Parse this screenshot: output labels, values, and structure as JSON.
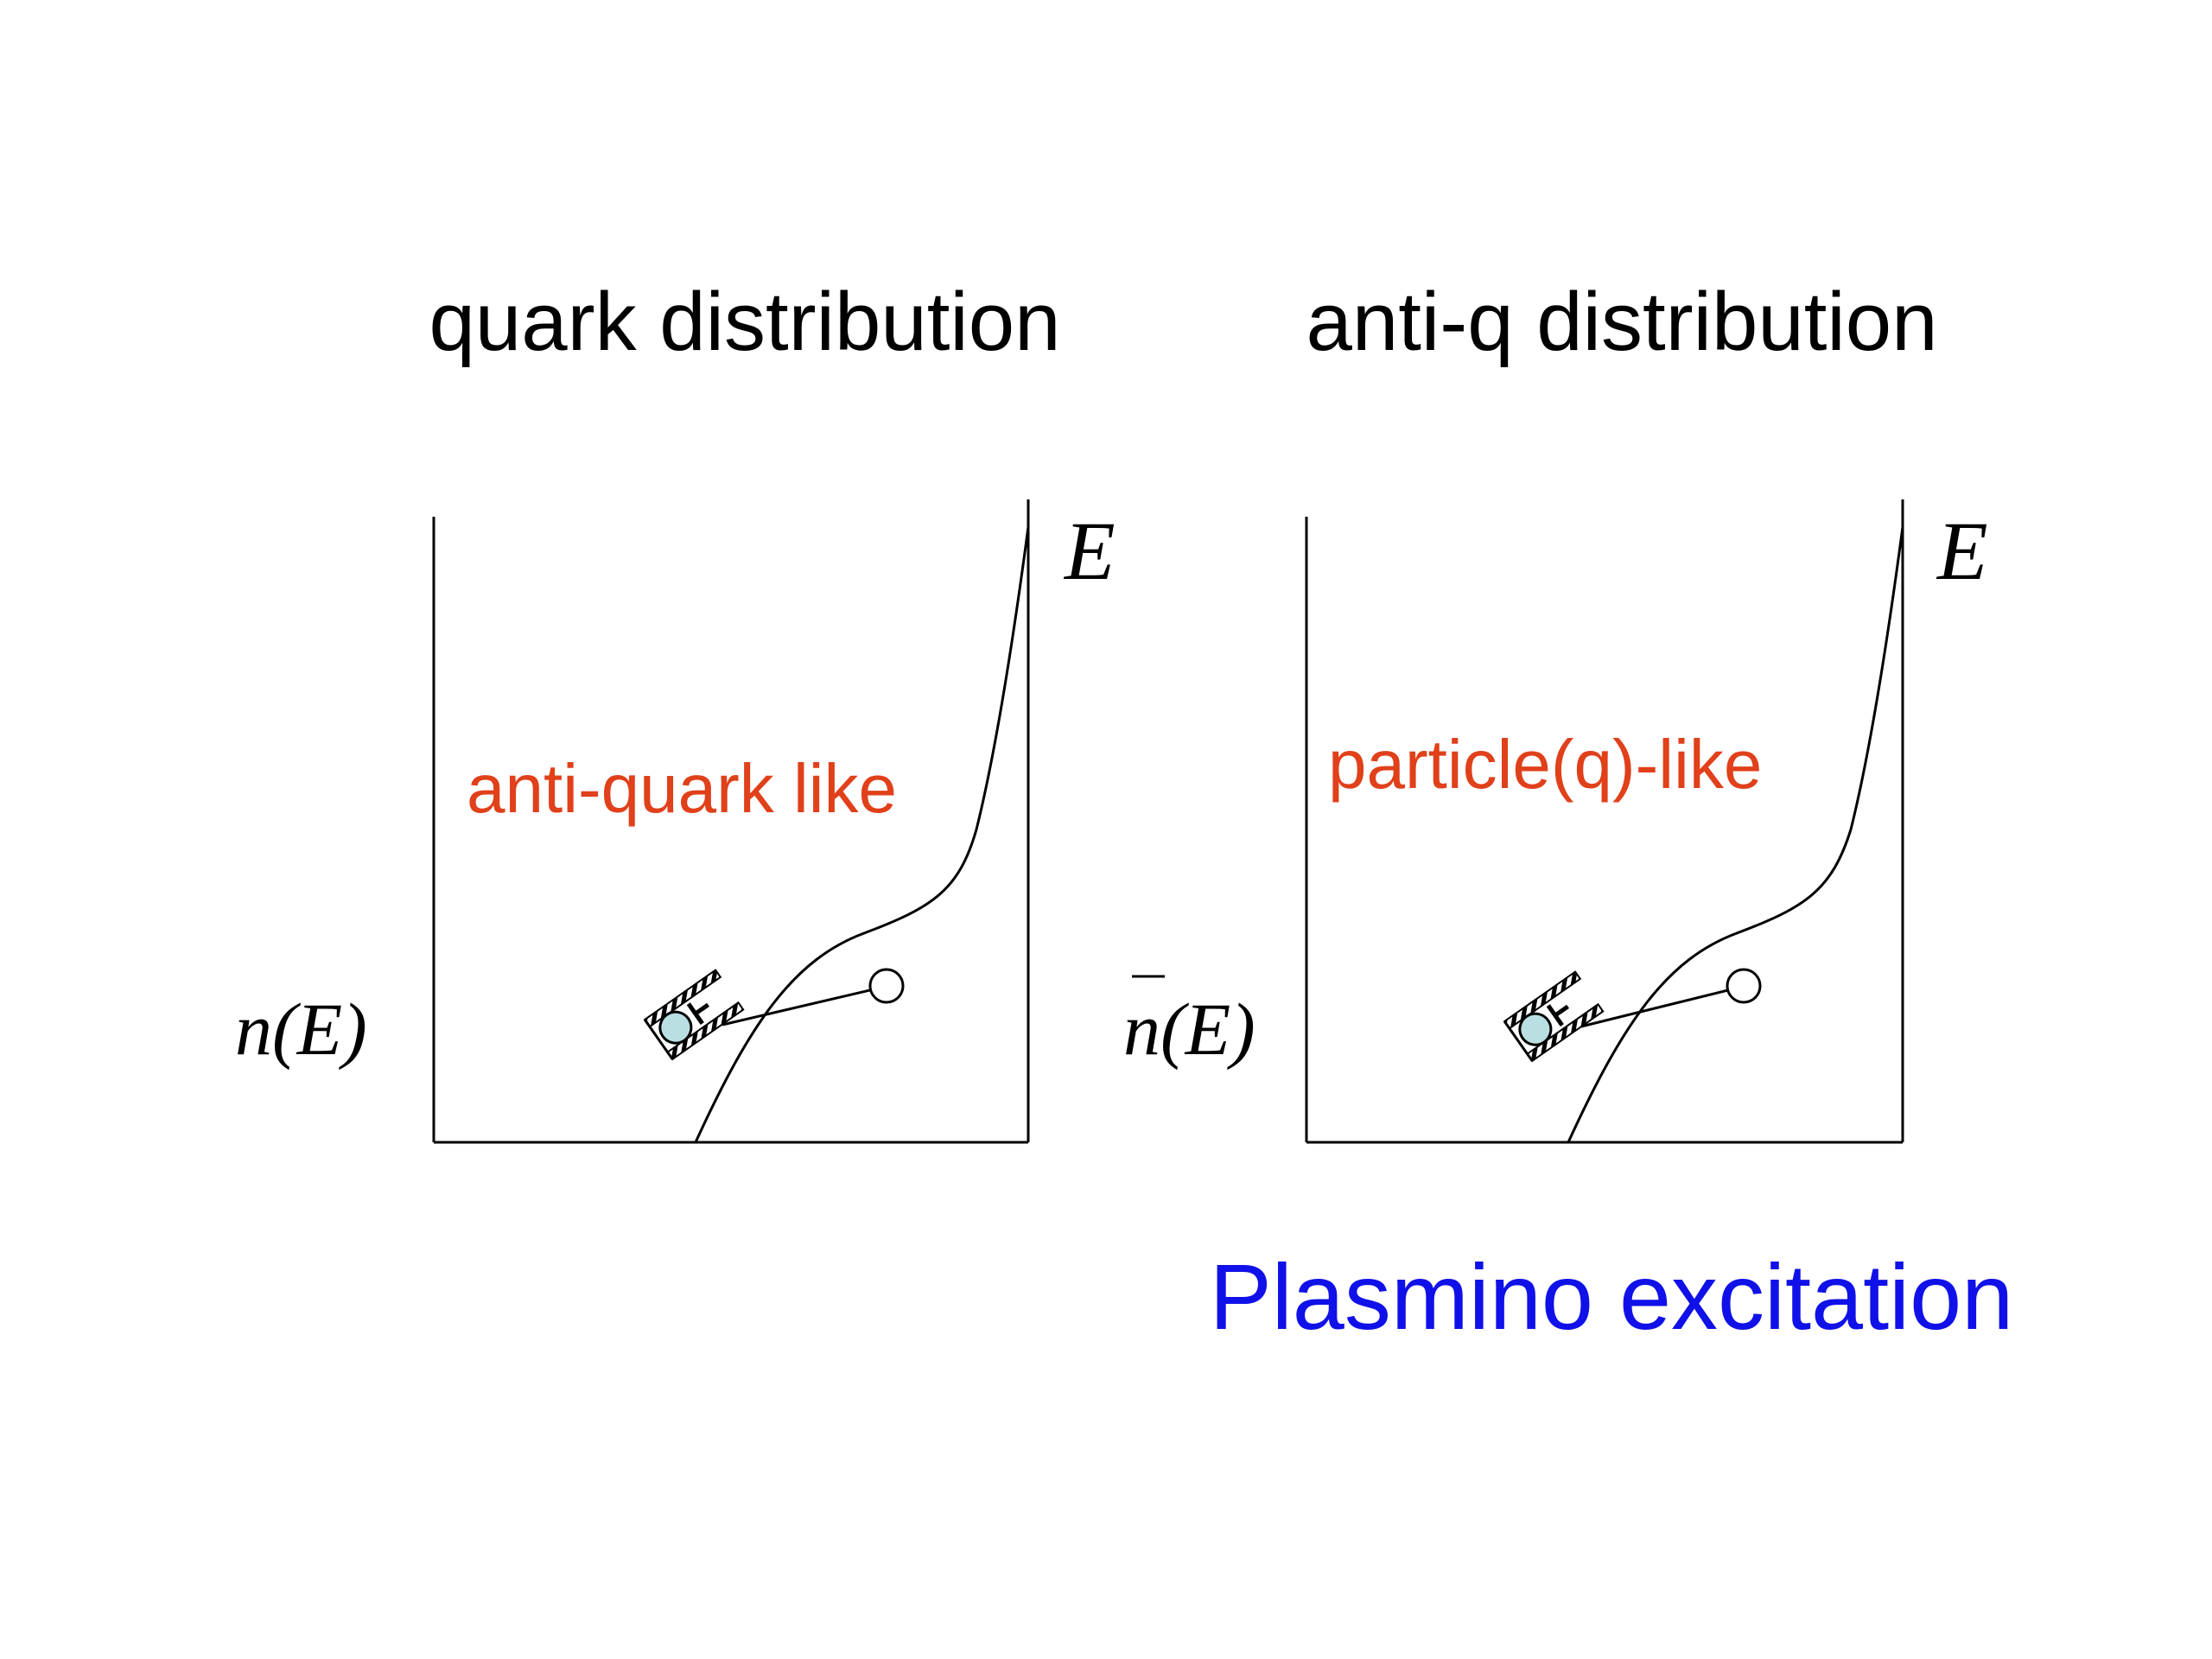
{
  "left_panel": {
    "title": "quark distribution",
    "annotation": "anti-quark like",
    "y_label": "n(E)",
    "x_label": "E"
  },
  "right_panel": {
    "title": "anti-q distribution",
    "annotation": "particle(q)-like",
    "y_label": "n(E)",
    "y_label_overbar": true,
    "x_label": "E"
  },
  "caption": "Plasmino excitation",
  "colors": {
    "text": "#000000",
    "annotation": "#e0401a",
    "caption": "#1010e8",
    "axis": "#000000",
    "particle_fill": "#b9dfe3",
    "hole_fill": "#ffffff"
  },
  "icons": [
    "ball-in-tube-icon",
    "empty-circle-icon"
  ]
}
